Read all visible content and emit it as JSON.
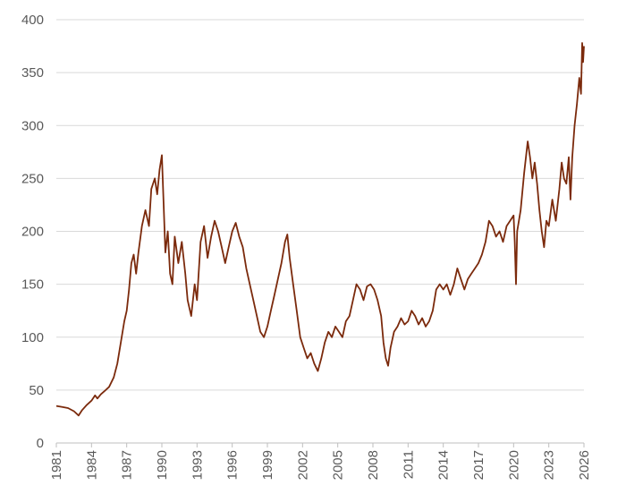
{
  "chart_data": {
    "type": "line",
    "title": "",
    "xlabel": "",
    "ylabel": "",
    "ylim": [
      0,
      400
    ],
    "xlim": [
      1981,
      2026
    ],
    "grid": "horizontal",
    "legend": "none",
    "y_ticks": [
      "0",
      "50",
      "100",
      "150",
      "200",
      "250",
      "300",
      "350",
      "400"
    ],
    "x_ticks": [
      "1981",
      "1984",
      "1987",
      "1990",
      "1993",
      "1996",
      "1999",
      "2002",
      "2005",
      "2008",
      "2011",
      "2014",
      "2017",
      "2020",
      "2023",
      "2026"
    ],
    "series": [
      {
        "color": "#7b2a0c",
        "points": [
          [
            1981.0,
            35
          ],
          [
            1981.5,
            34
          ],
          [
            1982.0,
            33
          ],
          [
            1982.5,
            30
          ],
          [
            1982.9,
            26
          ],
          [
            1983.2,
            31
          ],
          [
            1983.6,
            36
          ],
          [
            1984.0,
            40
          ],
          [
            1984.3,
            45
          ],
          [
            1984.5,
            42
          ],
          [
            1984.8,
            46
          ],
          [
            1985.1,
            49
          ],
          [
            1985.5,
            53
          ],
          [
            1985.9,
            62
          ],
          [
            1986.2,
            75
          ],
          [
            1986.5,
            95
          ],
          [
            1986.8,
            115
          ],
          [
            1987.0,
            125
          ],
          [
            1987.2,
            145
          ],
          [
            1987.4,
            170
          ],
          [
            1987.6,
            178
          ],
          [
            1987.8,
            160
          ],
          [
            1988.0,
            180
          ],
          [
            1988.3,
            205
          ],
          [
            1988.6,
            220
          ],
          [
            1988.9,
            205
          ],
          [
            1989.1,
            240
          ],
          [
            1989.4,
            250
          ],
          [
            1989.6,
            235
          ],
          [
            1989.8,
            258
          ],
          [
            1990.0,
            272
          ],
          [
            1990.15,
            225
          ],
          [
            1990.3,
            180
          ],
          [
            1990.5,
            200
          ],
          [
            1990.7,
            160
          ],
          [
            1990.9,
            150
          ],
          [
            1991.1,
            195
          ],
          [
            1991.4,
            170
          ],
          [
            1991.7,
            190
          ],
          [
            1992.0,
            160
          ],
          [
            1992.2,
            135
          ],
          [
            1992.5,
            120
          ],
          [
            1992.8,
            150
          ],
          [
            1993.0,
            135
          ],
          [
            1993.3,
            190
          ],
          [
            1993.6,
            205
          ],
          [
            1993.9,
            175
          ],
          [
            1994.2,
            195
          ],
          [
            1994.5,
            210
          ],
          [
            1994.8,
            200
          ],
          [
            1995.1,
            185
          ],
          [
            1995.4,
            170
          ],
          [
            1995.7,
            185
          ],
          [
            1996.0,
            200
          ],
          [
            1996.3,
            208
          ],
          [
            1996.6,
            195
          ],
          [
            1996.9,
            185
          ],
          [
            1997.2,
            165
          ],
          [
            1997.5,
            150
          ],
          [
            1997.8,
            135
          ],
          [
            1998.1,
            120
          ],
          [
            1998.4,
            105
          ],
          [
            1998.7,
            100
          ],
          [
            1999.0,
            110
          ],
          [
            1999.3,
            125
          ],
          [
            1999.6,
            140
          ],
          [
            1999.9,
            155
          ],
          [
            2000.2,
            170
          ],
          [
            2000.5,
            190
          ],
          [
            2000.7,
            197
          ],
          [
            2000.9,
            175
          ],
          [
            2001.2,
            150
          ],
          [
            2001.5,
            125
          ],
          [
            2001.8,
            100
          ],
          [
            2002.1,
            90
          ],
          [
            2002.4,
            80
          ],
          [
            2002.7,
            85
          ],
          [
            2003.0,
            75
          ],
          [
            2003.3,
            68
          ],
          [
            2003.6,
            80
          ],
          [
            2003.9,
            95
          ],
          [
            2004.2,
            105
          ],
          [
            2004.5,
            100
          ],
          [
            2004.8,
            110
          ],
          [
            2005.1,
            105
          ],
          [
            2005.4,
            100
          ],
          [
            2005.7,
            115
          ],
          [
            2006.0,
            120
          ],
          [
            2006.3,
            135
          ],
          [
            2006.6,
            150
          ],
          [
            2006.9,
            145
          ],
          [
            2007.2,
            135
          ],
          [
            2007.5,
            148
          ],
          [
            2007.8,
            150
          ],
          [
            2008.1,
            145
          ],
          [
            2008.4,
            135
          ],
          [
            2008.7,
            120
          ],
          [
            2008.9,
            95
          ],
          [
            2009.1,
            80
          ],
          [
            2009.3,
            73
          ],
          [
            2009.5,
            90
          ],
          [
            2009.8,
            105
          ],
          [
            2010.1,
            110
          ],
          [
            2010.4,
            118
          ],
          [
            2010.7,
            112
          ],
          [
            2011.0,
            115
          ],
          [
            2011.3,
            125
          ],
          [
            2011.6,
            120
          ],
          [
            2011.9,
            112
          ],
          [
            2012.2,
            118
          ],
          [
            2012.5,
            110
          ],
          [
            2012.8,
            115
          ],
          [
            2013.1,
            125
          ],
          [
            2013.4,
            145
          ],
          [
            2013.7,
            150
          ],
          [
            2014.0,
            145
          ],
          [
            2014.3,
            150
          ],
          [
            2014.6,
            140
          ],
          [
            2014.9,
            150
          ],
          [
            2015.2,
            165
          ],
          [
            2015.5,
            155
          ],
          [
            2015.8,
            145
          ],
          [
            2016.1,
            155
          ],
          [
            2016.4,
            160
          ],
          [
            2016.7,
            165
          ],
          [
            2017.0,
            170
          ],
          [
            2017.3,
            178
          ],
          [
            2017.6,
            190
          ],
          [
            2017.9,
            210
          ],
          [
            2018.2,
            205
          ],
          [
            2018.5,
            195
          ],
          [
            2018.8,
            200
          ],
          [
            2019.1,
            190
          ],
          [
            2019.4,
            205
          ],
          [
            2019.7,
            210
          ],
          [
            2020.0,
            215
          ],
          [
            2020.1,
            190
          ],
          [
            2020.2,
            150
          ],
          [
            2020.3,
            200
          ],
          [
            2020.6,
            220
          ],
          [
            2020.9,
            255
          ],
          [
            2021.2,
            285
          ],
          [
            2021.4,
            270
          ],
          [
            2021.6,
            250
          ],
          [
            2021.8,
            265
          ],
          [
            2022.0,
            245
          ],
          [
            2022.2,
            220
          ],
          [
            2022.4,
            200
          ],
          [
            2022.6,
            185
          ],
          [
            2022.8,
            210
          ],
          [
            2023.0,
            205
          ],
          [
            2023.3,
            230
          ],
          [
            2023.6,
            210
          ],
          [
            2023.9,
            240
          ],
          [
            2024.1,
            265
          ],
          [
            2024.3,
            250
          ],
          [
            2024.5,
            245
          ],
          [
            2024.7,
            270
          ],
          [
            2024.85,
            230
          ],
          [
            2025.0,
            270
          ],
          [
            2025.2,
            300
          ],
          [
            2025.4,
            320
          ],
          [
            2025.6,
            345
          ],
          [
            2025.75,
            330
          ],
          [
            2025.85,
            378
          ],
          [
            2025.92,
            360
          ],
          [
            2026.0,
            375
          ]
        ]
      }
    ]
  }
}
